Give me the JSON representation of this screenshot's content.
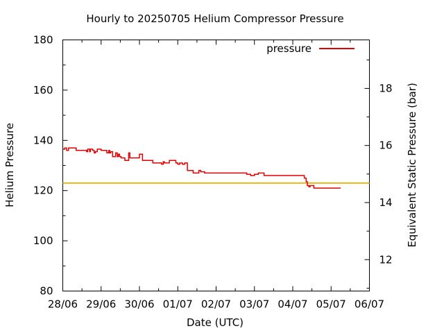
{
  "chart_data": {
    "type": "line",
    "title": "Hourly to 20250705 Helium Compressor Pressure",
    "xlabel": "Date (UTC)",
    "ylabel": "Helium Pressure",
    "y2label": "Equivalent Static Pressure (bar)",
    "x_ticks": [
      "28/06",
      "29/06",
      "30/06",
      "01/07",
      "02/07",
      "03/07",
      "04/07",
      "05/07",
      "06/07"
    ],
    "xlim": [
      0,
      8
    ],
    "ylim": [
      80,
      180
    ],
    "y_ticks": [
      80,
      100,
      120,
      140,
      160,
      180
    ],
    "y2_ticks": [
      12,
      14,
      16,
      18
    ],
    "y2_scale": {
      "value_at_y80": 10.9,
      "value_at_y180": 19.7
    },
    "grid": false,
    "legend_position": "top-right",
    "reference_line": {
      "y": 123,
      "color": "#e6b820"
    },
    "series": [
      {
        "name": "pressure",
        "color": "#e00000",
        "x": [
          0.0,
          0.05,
          0.1,
          0.15,
          0.3,
          0.35,
          0.5,
          0.6,
          0.62,
          0.65,
          0.7,
          0.72,
          0.78,
          0.82,
          0.85,
          0.9,
          1.0,
          1.1,
          1.15,
          1.2,
          1.22,
          1.25,
          1.3,
          1.35,
          1.38,
          1.42,
          1.45,
          1.48,
          1.52,
          1.58,
          1.62,
          1.72,
          1.75,
          1.78,
          1.82,
          1.88,
          2.0,
          2.08,
          2.12,
          2.18,
          2.25,
          2.35,
          2.45,
          2.58,
          2.62,
          2.65,
          2.78,
          2.9,
          2.95,
          3.0,
          3.05,
          3.12,
          3.18,
          3.25,
          3.3,
          3.35,
          3.4,
          3.55,
          3.6,
          3.65,
          3.7,
          3.75,
          3.8,
          4.0,
          4.2,
          4.4,
          4.65,
          4.8,
          4.9,
          5.0,
          5.1,
          5.18,
          5.25,
          5.4,
          5.6,
          5.8,
          6.0,
          6.2,
          6.3,
          6.35,
          6.38,
          6.42,
          6.45,
          6.5,
          6.55,
          6.6,
          6.7,
          6.9,
          7.1,
          7.25
        ],
        "y": [
          136.5,
          137,
          136,
          137,
          137,
          136,
          136,
          136,
          135.5,
          136.5,
          135.5,
          136.5,
          136,
          135,
          135.5,
          136.5,
          136,
          136,
          135,
          136,
          135,
          135.5,
          133.5,
          133.5,
          135,
          133.5,
          134.5,
          133.5,
          133,
          133,
          132,
          135,
          133,
          133,
          133,
          133,
          134.5,
          132,
          132,
          132,
          132,
          131,
          131,
          130.5,
          131.5,
          131,
          132,
          132,
          131,
          130.5,
          131,
          130.5,
          131,
          128,
          128,
          128,
          127,
          128,
          127.5,
          127.5,
          127,
          127,
          127,
          127,
          127,
          127,
          127,
          126.5,
          126,
          126.5,
          127,
          127,
          126,
          126,
          126,
          126,
          126,
          126,
          125,
          123.5,
          122,
          121.5,
          122,
          122,
          121,
          121,
          121,
          121,
          121,
          121
        ]
      }
    ]
  }
}
